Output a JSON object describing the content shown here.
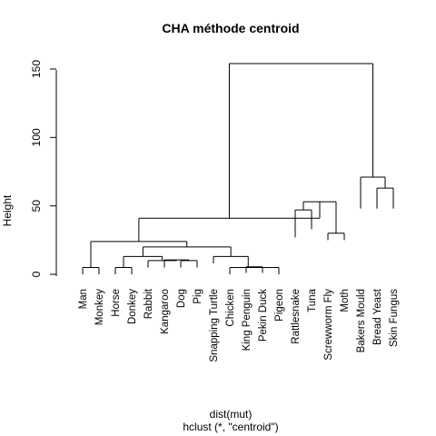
{
  "chart_data": {
    "type": "dendrogram",
    "title": "CHA méthode centroid",
    "ylabel": "Height",
    "xlabel": "dist(mut)",
    "sublabel": "hclust (*, \"centroid\")",
    "ylim": [
      0,
      155
    ],
    "yticks": [
      0,
      50,
      100,
      150
    ],
    "leaves": [
      "Man",
      "Monkey",
      "Horse",
      "Donkey",
      "Rabbit",
      "Kangaroo",
      "Dog",
      "Pig",
      "Snapping Turtle",
      "Chicken",
      "King Penguin",
      "Pekin Duck",
      "Pigeon",
      "Rattlesnake",
      "Tuna",
      "Screwworm Fly",
      "Moth",
      "Bakers Mould",
      "Bread Yeast",
      "Skin Fungus"
    ],
    "leaf_tip_heights": [
      5,
      5,
      5,
      5,
      10,
      10,
      10,
      10,
      13,
      5,
      6,
      6,
      5,
      32,
      38,
      30,
      30,
      53,
      53,
      53
    ],
    "merges": [
      [
        -1,
        -2,
        5
      ],
      [
        -3,
        -4,
        5
      ],
      [
        -11,
        -12,
        5.5
      ],
      [
        -13,
        3,
        5
      ],
      [
        -10,
        4,
        5
      ],
      [
        -7,
        -8,
        10
      ],
      [
        -6,
        6,
        10.5
      ],
      [
        -5,
        7,
        10
      ],
      [
        -9,
        5,
        13
      ],
      [
        2,
        8,
        13
      ],
      [
        10,
        9,
        20
      ],
      [
        1,
        11,
        24
      ],
      [
        -14,
        -15,
        47
      ],
      [
        -16,
        -17,
        30
      ],
      [
        13,
        14,
        53
      ],
      [
        -19,
        -20,
        63
      ],
      [
        -18,
        16,
        71
      ],
      [
        12,
        15,
        41
      ],
      [
        18,
        17,
        154
      ]
    ]
  }
}
